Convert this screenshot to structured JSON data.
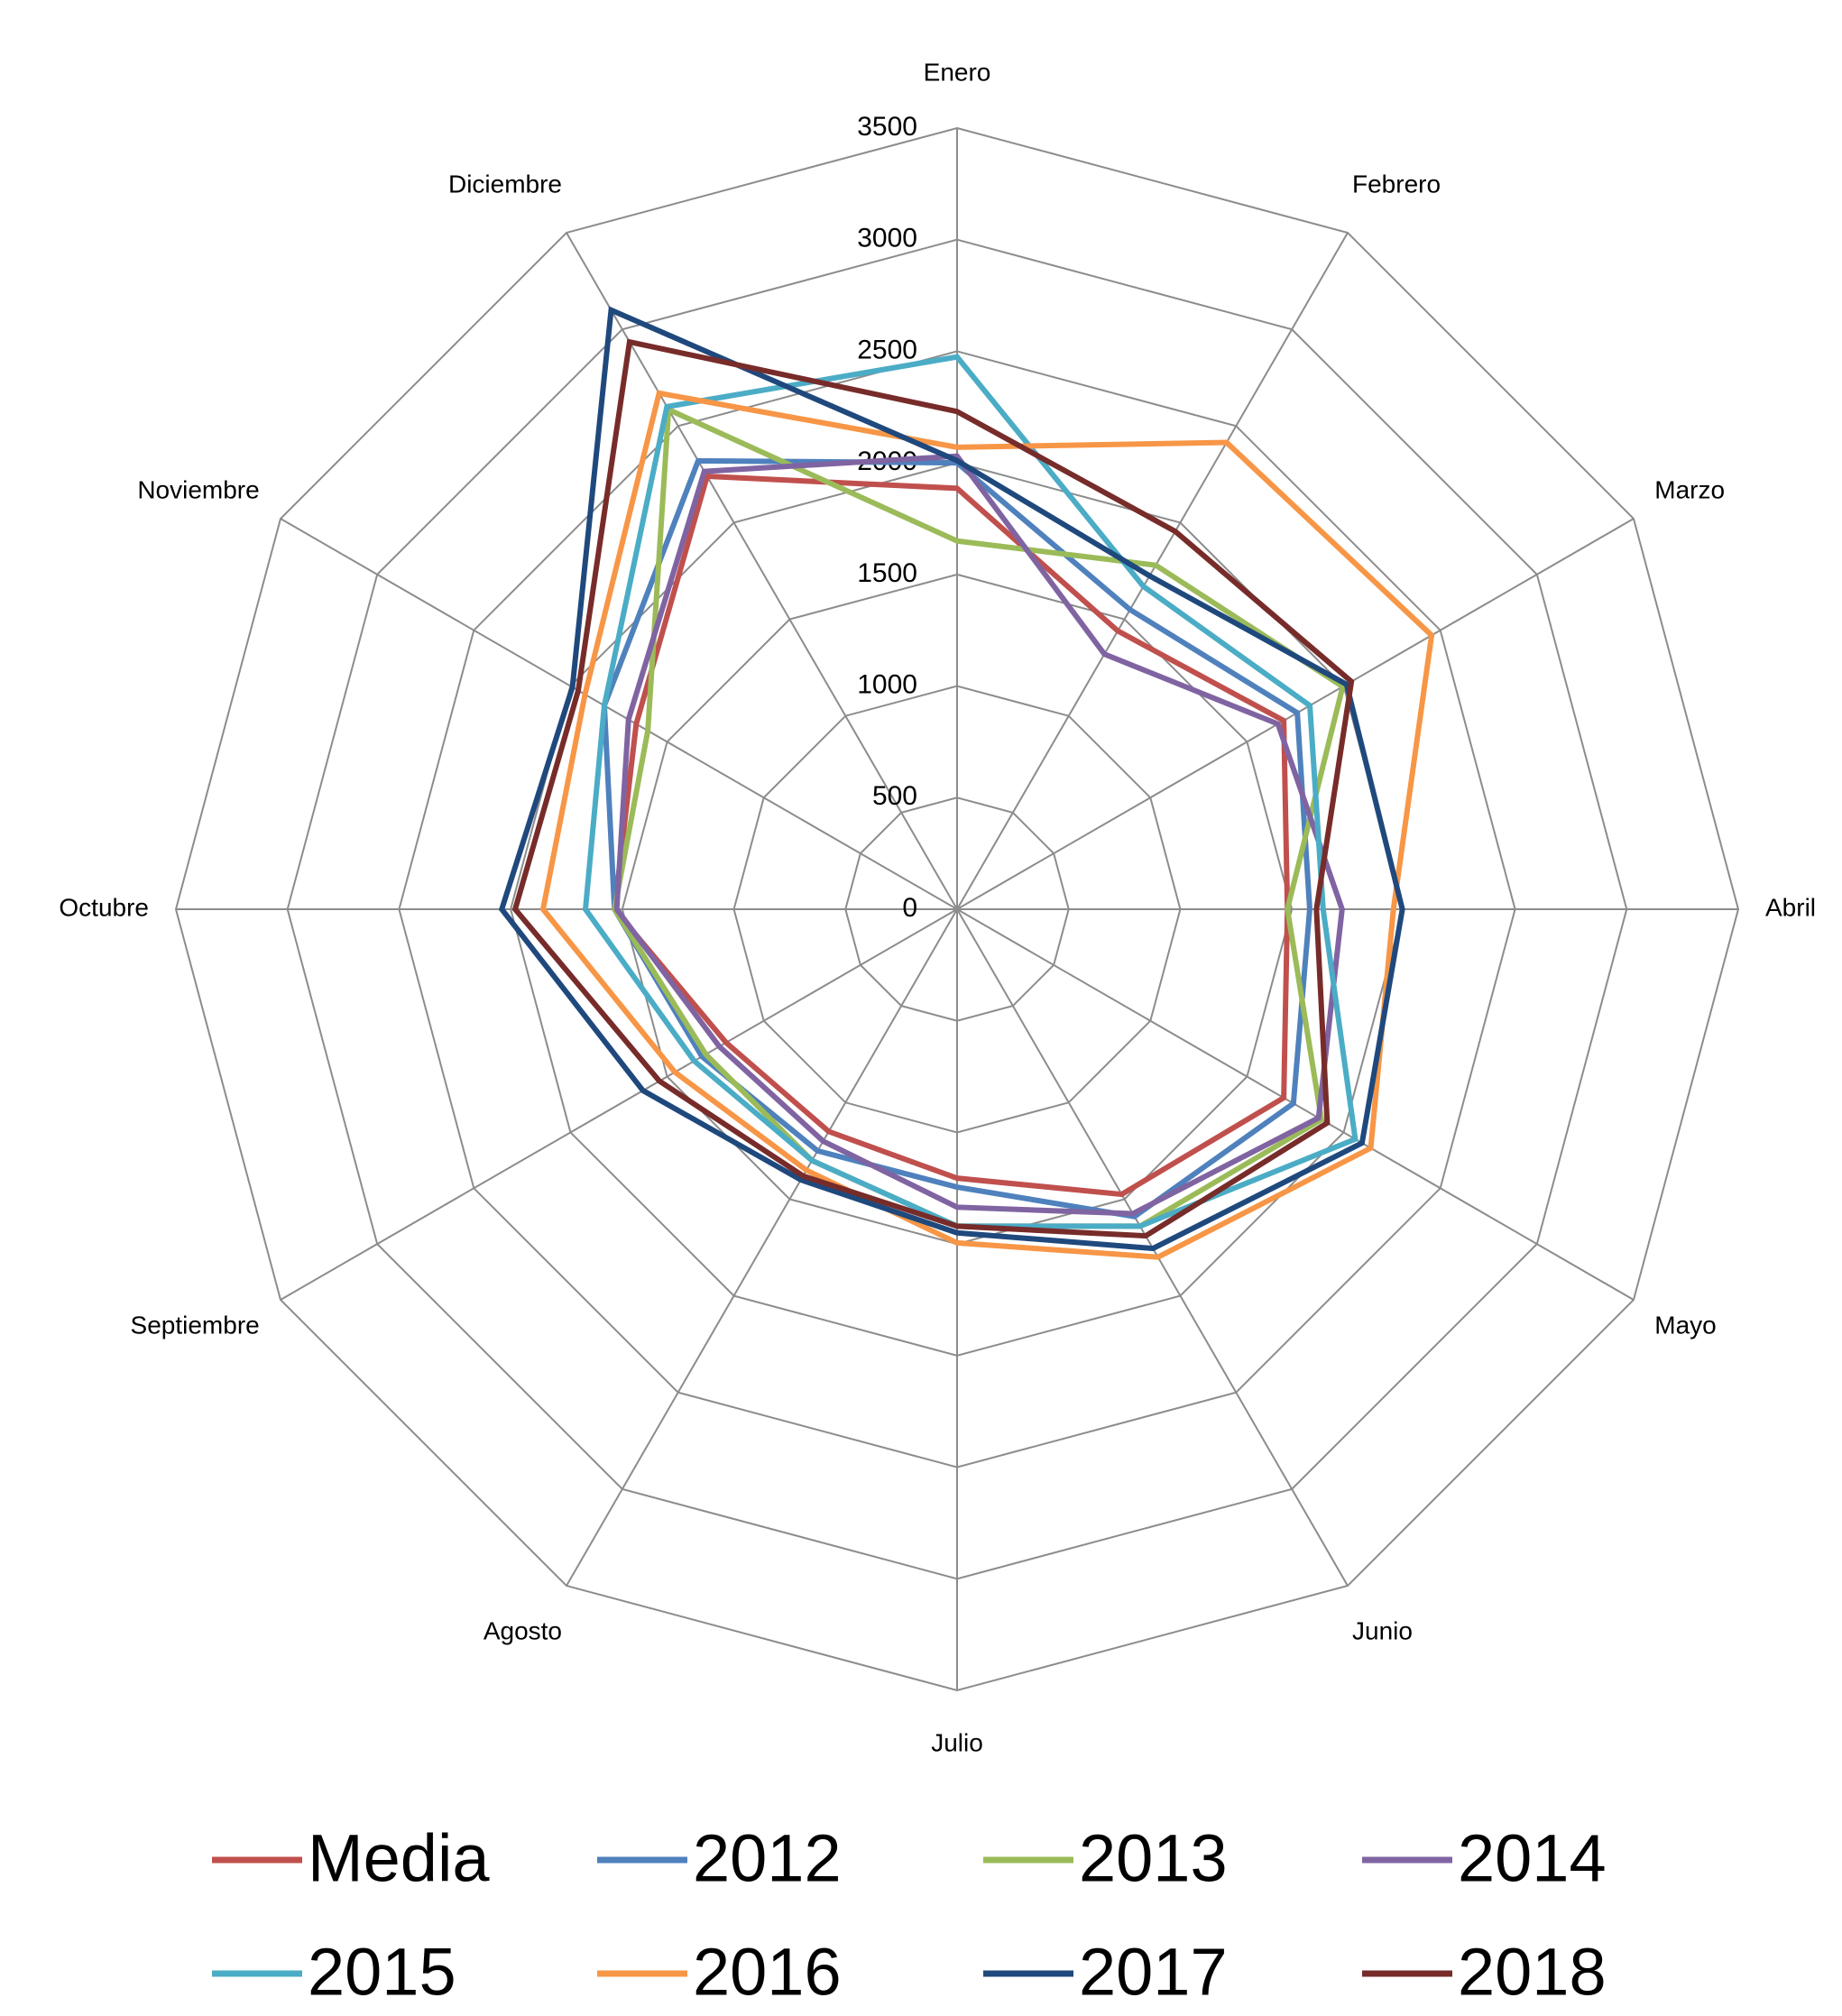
{
  "chart_data": {
    "type": "radar",
    "categories": [
      "Enero",
      "Febrero",
      "Marzo",
      "Abril",
      "Mayo",
      "Junio",
      "Julio",
      "Agosto",
      "Septiembre",
      "Octubre",
      "Noviembre",
      "Diciembre"
    ],
    "ylim": [
      0,
      3500
    ],
    "yticks": [
      0,
      500,
      1000,
      1500,
      2000,
      2500,
      3000,
      3500
    ],
    "grid": true,
    "legend": "bottom",
    "series": [
      {
        "name": "Media",
        "color": "#c0504d",
        "values": [
          1886,
          1440,
          1690,
          1480,
          1690,
          1475,
          1205,
          1150,
          1195,
          1535,
          1660,
          2240
        ]
      },
      {
        "name": "2012",
        "color": "#4f81bd",
        "values": [
          2000,
          1550,
          1760,
          1580,
          1740,
          1590,
          1245,
          1250,
          1320,
          1535,
          1825,
          2320
        ]
      },
      {
        "name": "2013",
        "color": "#9bbb59",
        "values": [
          1650,
          1780,
          1995,
          1480,
          1885,
          1640,
          1420,
          1300,
          1300,
          1535,
          1600,
          2585
        ]
      },
      {
        "name": "2014",
        "color": "#8064a2",
        "values": [
          2030,
          1320,
          1660,
          1725,
          1870,
          1575,
          1335,
          1200,
          1230,
          1525,
          1700,
          2265
        ]
      },
      {
        "name": "2015",
        "color": "#4bacc6",
        "values": [
          2475,
          1670,
          1825,
          1640,
          2060,
          1640,
          1420,
          1300,
          1360,
          1665,
          1825,
          2600
        ]
      },
      {
        "name": "2016",
        "color": "#f79646",
        "values": [
          2070,
          2415,
          2455,
          1955,
          2140,
          1800,
          1495,
          1350,
          1460,
          1855,
          1925,
          2670
        ]
      },
      {
        "name": "2017",
        "color": "#1f497d",
        "values": [
          2010,
          1725,
          2015,
          1995,
          2095,
          1755,
          1450,
          1400,
          1625,
          2040,
          1990,
          3100
        ]
      },
      {
        "name": "2018",
        "color": "#772c2a",
        "values": [
          2230,
          1955,
          2040,
          1610,
          1915,
          1690,
          1420,
          1380,
          1540,
          1980,
          1960,
          2935
        ]
      }
    ]
  }
}
